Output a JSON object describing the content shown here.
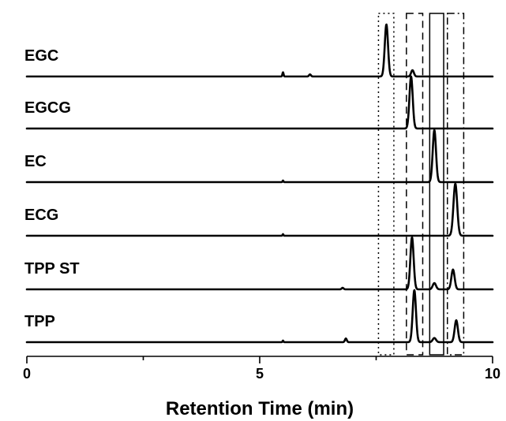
{
  "chart_data": {
    "type": "line",
    "xlabel": "Retention Time (min)",
    "ylabel": "",
    "xlim": [
      0,
      10
    ],
    "x_ticks": [
      {
        "value": 0,
        "label": "0"
      },
      {
        "value": 5,
        "label": "5"
      },
      {
        "value": 10,
        "label": "10"
      }
    ],
    "x_minor_ticks": [
      2.5,
      7.5
    ],
    "grid": false,
    "line_color": "#000000",
    "series": [
      {
        "name": "EGC",
        "peaks": [
          {
            "rt": 5.5,
            "height": 0.08,
            "width": 0.012
          },
          {
            "rt": 6.08,
            "height": 0.04,
            "width": 0.02
          },
          {
            "rt": 7.72,
            "height": 1.0,
            "width": 0.035
          },
          {
            "rt": 8.28,
            "height": 0.12,
            "width": 0.03
          }
        ]
      },
      {
        "name": "EGCG",
        "peaks": [
          {
            "rt": 8.25,
            "height": 1.0,
            "width": 0.035
          }
        ]
      },
      {
        "name": "EC",
        "peaks": [
          {
            "rt": 5.5,
            "height": 0.03,
            "width": 0.01
          },
          {
            "rt": 8.75,
            "height": 1.0,
            "width": 0.035
          }
        ]
      },
      {
        "name": "ECG",
        "peaks": [
          {
            "rt": 5.5,
            "height": 0.03,
            "width": 0.01
          },
          {
            "rt": 9.2,
            "height": 1.0,
            "width": 0.04
          }
        ]
      },
      {
        "name": "TPP ST",
        "peaks": [
          {
            "rt": 6.78,
            "height": 0.03,
            "width": 0.02
          },
          {
            "rt": 8.27,
            "height": 1.0,
            "width": 0.035
          },
          {
            "rt": 8.75,
            "height": 0.12,
            "width": 0.035
          },
          {
            "rt": 9.15,
            "height": 0.38,
            "width": 0.035
          }
        ]
      },
      {
        "name": "TPP",
        "peaks": [
          {
            "rt": 5.5,
            "height": 0.03,
            "width": 0.01
          },
          {
            "rt": 6.85,
            "height": 0.07,
            "width": 0.02
          },
          {
            "rt": 8.32,
            "height": 1.0,
            "width": 0.035
          },
          {
            "rt": 8.75,
            "height": 0.08,
            "width": 0.035
          },
          {
            "rt": 9.22,
            "height": 0.42,
            "width": 0.035
          }
        ]
      }
    ],
    "highlight_boxes": [
      {
        "compound": "EGC",
        "x_range": [
          7.55,
          7.88
        ],
        "style": "dotted"
      },
      {
        "compound": "EGCG",
        "x_range": [
          8.15,
          8.5
        ],
        "style": "dashed"
      },
      {
        "compound": "EC",
        "x_range": [
          8.65,
          8.95
        ],
        "style": "solid"
      },
      {
        "compound": "ECG",
        "x_range": [
          9.03,
          9.38
        ],
        "style": "dash-dot"
      }
    ]
  }
}
